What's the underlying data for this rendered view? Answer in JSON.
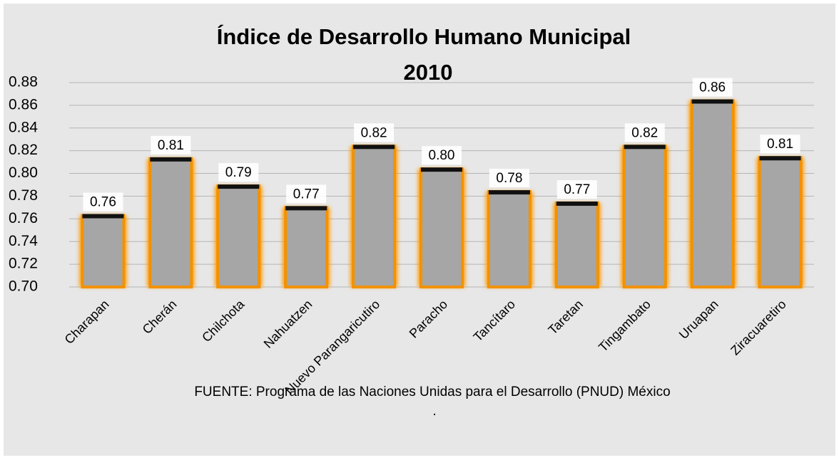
{
  "chart_data": {
    "type": "bar",
    "title": [
      "Índice de Desarrollo Humano Municipal",
      "2010"
    ],
    "categories": [
      "Charapan",
      "Cherán",
      "Chilchota",
      "Nahuatzen",
      "Nuevo Parangaricutiro",
      "Paracho",
      "Tancítaro",
      "Taretan",
      "Tingambato",
      "Uruapan",
      "Ziracuaretiro"
    ],
    "values": [
      0.763,
      0.813,
      0.789,
      0.77,
      0.824,
      0.804,
      0.784,
      0.774,
      0.824,
      0.864,
      0.814
    ],
    "value_labels": [
      "0.76",
      "0.81",
      "0.79",
      "0.77",
      "0.82",
      "0.80",
      "0.78",
      "0.77",
      "0.82",
      "0.86",
      "0.81"
    ],
    "color": "#a6a6a6",
    "ylim": [
      0.7,
      0.88
    ],
    "yticks": [
      {
        "value": 0.7,
        "label": "0.70"
      },
      0.72,
      0.74,
      0.76,
      0.78,
      {
        "value": 0.8,
        "label": "0.80"
      },
      0.82,
      0.84,
      0.86,
      0.88
    ],
    "grid": true,
    "source": "FUENTE: Programa de las Naciones Unidas para el Desarrollo (PNUD) México",
    "footnote": "."
  }
}
